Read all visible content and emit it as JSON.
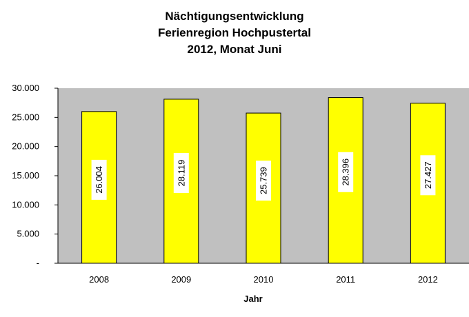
{
  "chart_data": {
    "type": "bar",
    "title": [
      "Nächtigungsentwicklung",
      "Ferienregion Hochpustertal",
      "2012, Monat Juni"
    ],
    "categories": [
      "2008",
      "2009",
      "2010",
      "2011",
      "2012"
    ],
    "values": [
      26004,
      28119,
      25739,
      28396,
      27427
    ],
    "data_labels": [
      "26.004",
      "28.119",
      "25.739",
      "28.396",
      "27.427"
    ],
    "xlabel": "Jahr",
    "ylabel": "",
    "ylim": [
      0,
      30000
    ],
    "yticks": [
      0,
      5000,
      10000,
      15000,
      20000,
      25000,
      30000
    ],
    "ytick_labels": [
      "-",
      "5.000",
      "10.000",
      "15.000",
      "20.000",
      "25.000",
      "30.000"
    ],
    "grid": false,
    "legend": "none",
    "colors": {
      "plot_background": "#c0c0c0",
      "bar_fill": "#ffff00",
      "bar_stroke": "#000000",
      "label_box": "#ffffff"
    }
  }
}
